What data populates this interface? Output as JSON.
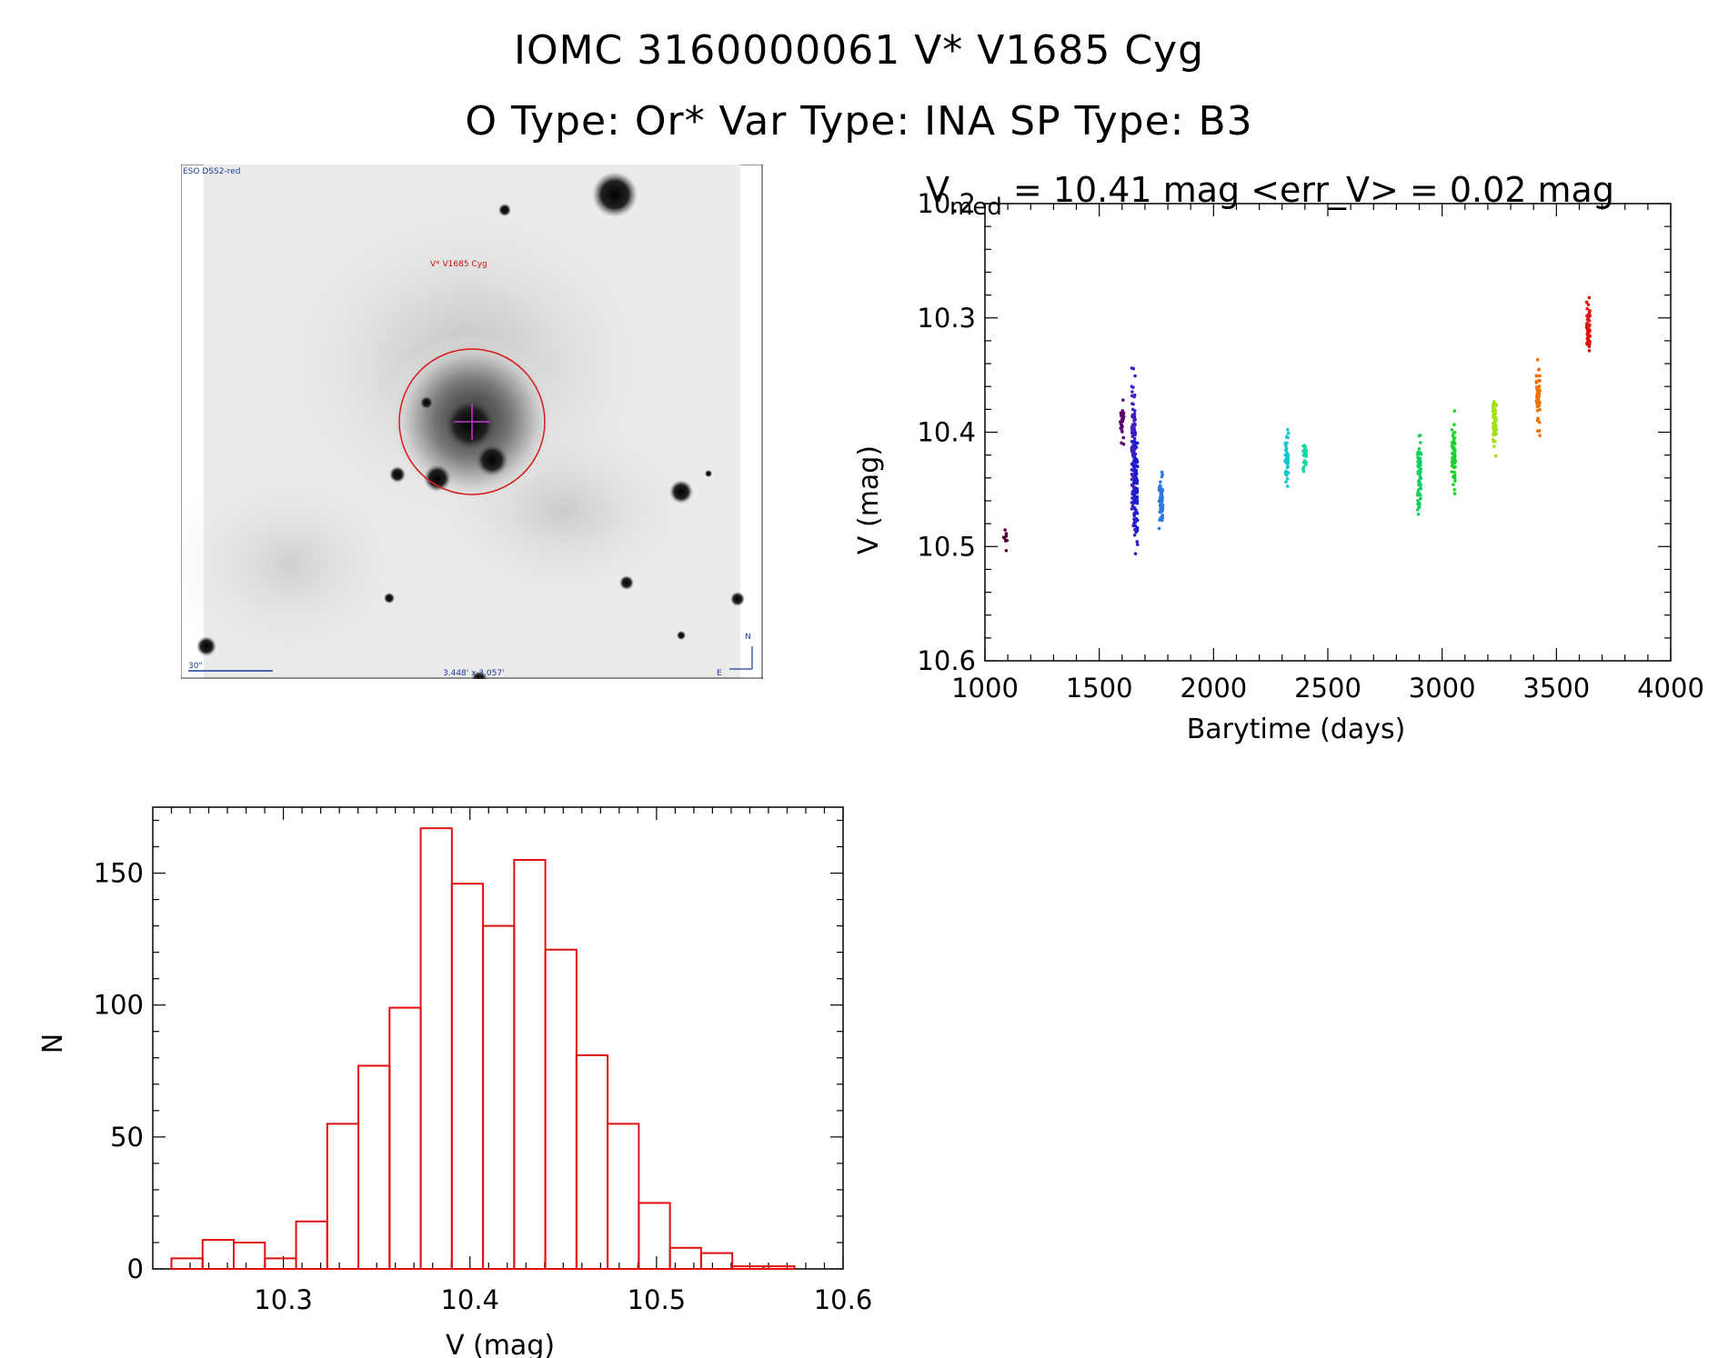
{
  "header": {
    "line1": "IOMC 3160000061    V* V1685 Cyg",
    "line2": "O Type: Or*  Var Type: INA  SP Type: B3"
  },
  "finder": {
    "survey": "ESO DSS2-red",
    "target_label": "V* V1685 Cyg",
    "scale_label": "30\"",
    "fov_label": "3.448' x 3.057'",
    "north": "N",
    "east": "E"
  },
  "chart_data": [
    {
      "type": "scatter",
      "title_parts": {
        "prefix": "V",
        "sub": "med",
        "rest": " = 10.41 mag <err_V> = 0.02 mag"
      },
      "xlabel": "Barytime (days)",
      "ylabel": "V (mag)",
      "xlim": [
        1000,
        4000
      ],
      "ylim": [
        10.6,
        10.2
      ],
      "y_inverted": true,
      "xticks": [
        1000,
        1500,
        2000,
        2500,
        3000,
        3500,
        4000
      ],
      "yticks": [
        10.2,
        10.3,
        10.4,
        10.5,
        10.6
      ],
      "ytick_labels": [
        "10.2",
        "10.3",
        "10.4",
        "10.5",
        "10.6"
      ],
      "groups": [
        {
          "x": 1090,
          "y_center": 10.49,
          "y_spread": 0.03,
          "n": 8,
          "color": "#4a0030"
        },
        {
          "x": 1600,
          "y_center": 10.39,
          "y_spread": 0.03,
          "n": 30,
          "color": "#5a0070"
        },
        {
          "x": 1650,
          "y_center": 10.42,
          "y_spread": 0.11,
          "n": 120,
          "color": "#4020c0"
        },
        {
          "x": 1660,
          "y_center": 10.45,
          "y_spread": 0.08,
          "n": 80,
          "color": "#1c1cd0"
        },
        {
          "x": 1770,
          "y_center": 10.46,
          "y_spread": 0.04,
          "n": 60,
          "color": "#2a78e0"
        },
        {
          "x": 2320,
          "y_center": 10.42,
          "y_spread": 0.05,
          "n": 40,
          "color": "#10c8d0"
        },
        {
          "x": 2400,
          "y_center": 10.42,
          "y_spread": 0.03,
          "n": 30,
          "color": "#10d8a0"
        },
        {
          "x": 2900,
          "y_center": 10.44,
          "y_spread": 0.06,
          "n": 60,
          "color": "#10d060"
        },
        {
          "x": 3050,
          "y_center": 10.42,
          "y_spread": 0.06,
          "n": 60,
          "color": "#20d030"
        },
        {
          "x": 3230,
          "y_center": 10.39,
          "y_spread": 0.05,
          "n": 55,
          "color": "#a0e010"
        },
        {
          "x": 3420,
          "y_center": 10.37,
          "y_spread": 0.05,
          "n": 55,
          "color": "#f07000"
        },
        {
          "x": 3640,
          "y_center": 10.31,
          "y_spread": 0.04,
          "n": 55,
          "color": "#e01010"
        }
      ]
    },
    {
      "type": "bar",
      "subtype": "histogram",
      "xlabel": "V (mag)",
      "ylabel": "N",
      "xlim": [
        10.23,
        10.6
      ],
      "ylim": [
        0,
        175
      ],
      "xticks": [
        10.3,
        10.4,
        10.5,
        10.6
      ],
      "yticks": [
        0,
        50,
        100,
        150
      ],
      "bin_start": 10.24,
      "bin_width": 0.0167,
      "counts": [
        4,
        11,
        10,
        4,
        18,
        55,
        77,
        99,
        167,
        146,
        130,
        155,
        121,
        81,
        55,
        25,
        8,
        6,
        1,
        1
      ],
      "color": "#e01010"
    }
  ]
}
